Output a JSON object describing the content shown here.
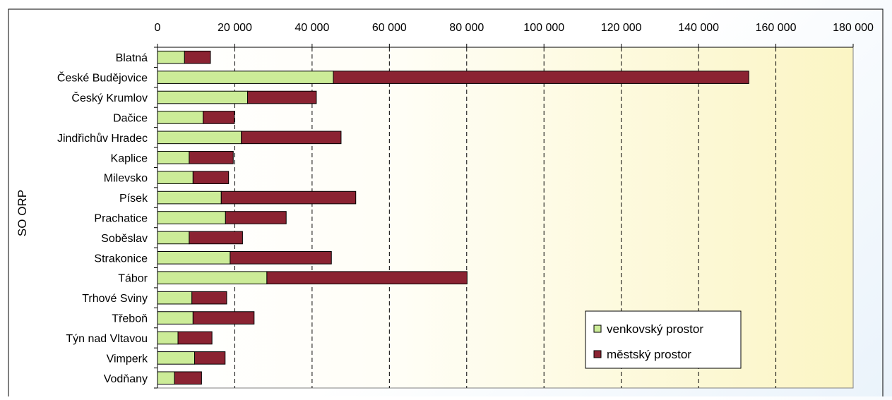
{
  "chart_data": {
    "type": "bar",
    "orientation": "horizontal",
    "stacked": true,
    "title": "",
    "xlabel": "",
    "ylabel": "SO ORP",
    "xlim": [
      0,
      180000
    ],
    "x_ticks": [
      0,
      20000,
      40000,
      60000,
      80000,
      100000,
      120000,
      140000,
      160000,
      180000
    ],
    "x_tick_labels": [
      "0",
      "20 000",
      "40 000",
      "60 000",
      "80 000",
      "100 000",
      "120 000",
      "140 000",
      "160 000",
      "180 000"
    ],
    "x_axis_position": "top",
    "grid": "vertical dashed",
    "legend_position": "bottom-right",
    "categories": [
      "Blatná",
      "České Budějovice",
      "Český Krumlov",
      "Dačice",
      "Jindřichův Hradec",
      "Kaplice",
      "Milevsko",
      "Písek",
      "Prachatice",
      "Soběslav",
      "Strakonice",
      "Tábor",
      "Trhové Sviny",
      "Třeboň",
      "Týn nad Vltavou",
      "Vimperk",
      "Vodňany"
    ],
    "series": [
      {
        "name": "venkovský prostor",
        "color": "#ccec98",
        "values": [
          7000,
          45500,
          23300,
          11800,
          21700,
          8200,
          9200,
          16500,
          17600,
          8200,
          18800,
          28300,
          8900,
          9200,
          5300,
          9600,
          4400
        ]
      },
      {
        "name": "městský prostor",
        "color": "#8b2332",
        "values": [
          6700,
          107500,
          17800,
          8100,
          25800,
          11400,
          9200,
          34800,
          15700,
          13800,
          26200,
          51800,
          9000,
          15800,
          8800,
          7900,
          7000
        ]
      }
    ]
  }
}
